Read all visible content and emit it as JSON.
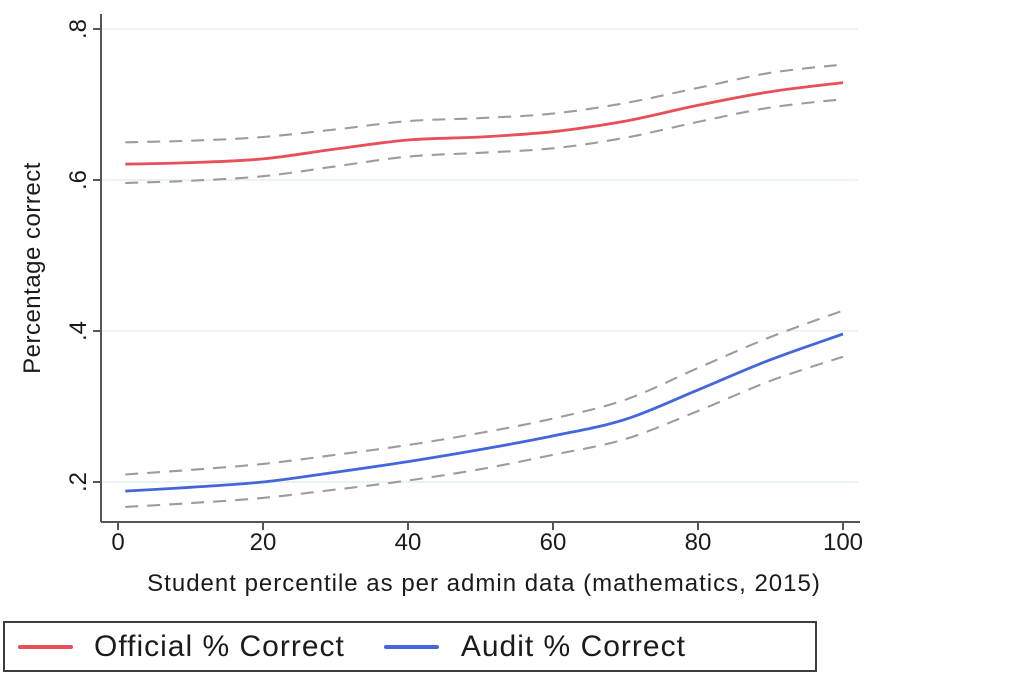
{
  "chart_data": {
    "type": "line",
    "title": "",
    "xlabel": "Student percentile as per admin data (mathematics, 2015)",
    "ylabel": "Percentage correct",
    "xlim": [
      0,
      100
    ],
    "ylim": [
      0.147,
      0.82
    ],
    "grid": "horizontal-light",
    "x_ticks": [
      {
        "label": "0",
        "value": 0
      },
      {
        "label": "20",
        "value": 20
      },
      {
        "label": "40",
        "value": 40
      },
      {
        "label": "60",
        "value": 60
      },
      {
        "label": "80",
        "value": 80
      },
      {
        "label": "100",
        "value": 100
      }
    ],
    "y_ticks": [
      {
        "label": ".8",
        "value": 0.8
      },
      {
        "label": ".6",
        "value": 0.6
      },
      {
        "label": ".4",
        "value": 0.4
      },
      {
        "label": ".2",
        "value": 0.2
      }
    ],
    "x": [
      1,
      10,
      20,
      30,
      40,
      50,
      60,
      70,
      80,
      90,
      100
    ],
    "series": [
      {
        "key": "official",
        "name": "Official % Correct",
        "style": "solid",
        "color": "#e94f59",
        "values": [
          0.621,
          0.623,
          0.628,
          0.641,
          0.653,
          0.657,
          0.664,
          0.678,
          0.699,
          0.717,
          0.729
        ]
      },
      {
        "key": "official-ci-upper",
        "name": "Official CI upper",
        "style": "dashed",
        "color": "#9c9c9c",
        "values": [
          0.65,
          0.652,
          0.657,
          0.667,
          0.678,
          0.682,
          0.688,
          0.702,
          0.722,
          0.742,
          0.753
        ]
      },
      {
        "key": "official-ci-lower",
        "name": "Official CI lower",
        "style": "dashed",
        "color": "#9c9c9c",
        "values": [
          0.596,
          0.599,
          0.605,
          0.618,
          0.631,
          0.636,
          0.642,
          0.656,
          0.677,
          0.696,
          0.707
        ]
      },
      {
        "key": "audit",
        "name": "Audit % Correct",
        "style": "solid",
        "color": "#4466dd",
        "values": [
          0.188,
          0.193,
          0.2,
          0.213,
          0.227,
          0.243,
          0.261,
          0.283,
          0.322,
          0.362,
          0.396
        ]
      },
      {
        "key": "audit-ci-upper",
        "name": "Audit CI upper",
        "style": "dashed",
        "color": "#9c9c9c",
        "values": [
          0.21,
          0.216,
          0.224,
          0.236,
          0.249,
          0.265,
          0.284,
          0.309,
          0.351,
          0.392,
          0.427
        ]
      },
      {
        "key": "audit-ci-lower",
        "name": "Audit CI lower",
        "style": "dashed",
        "color": "#9c9c9c",
        "values": [
          0.167,
          0.172,
          0.179,
          0.19,
          0.202,
          0.217,
          0.236,
          0.257,
          0.294,
          0.334,
          0.366
        ]
      }
    ],
    "legend": {
      "position": "bottom",
      "entries": [
        {
          "label": "Official % Correct",
          "color": "#e94f59"
        },
        {
          "label": "Audit % Correct",
          "color": "#4466dd"
        }
      ]
    },
    "colors": {
      "background": "#ffffff",
      "gridline": "#e6eff1",
      "axis": "#565656",
      "text": "#1b1b1b",
      "ci_dash": "#9c9c9c",
      "legend_border": "#3d3d3d"
    }
  }
}
